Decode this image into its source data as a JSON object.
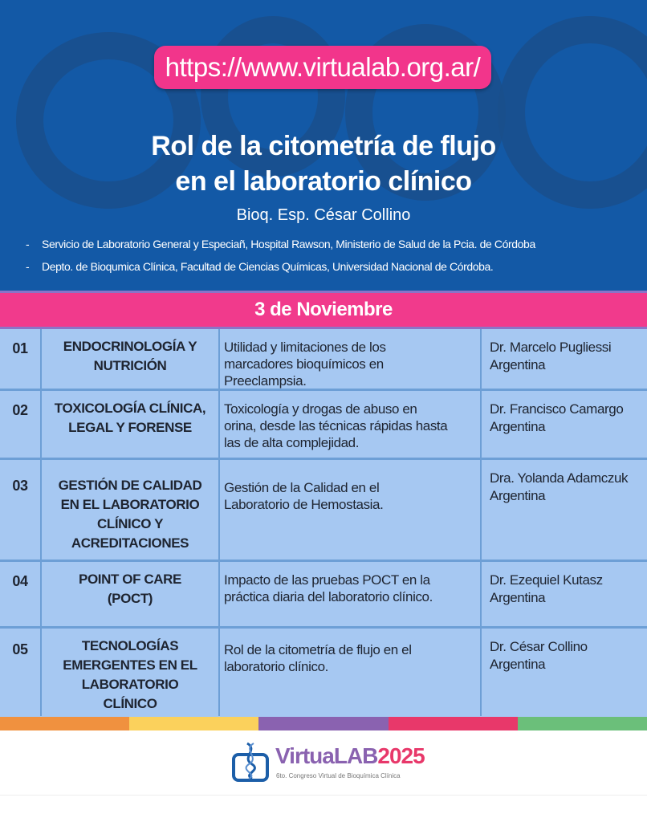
{
  "header": {
    "url": "https://www.virtualab.org.ar/",
    "title_line1": "Rol de la citometría de flujo",
    "title_line2": "en el laboratorio clínico",
    "speaker": "Bioq. Esp. César Collino",
    "affiliations": [
      "Servicio de Laboratorio General y Especiañ, Hospital Rawson, Ministerio de Salud de la Pcia. de Córdoba",
      "Depto. de Bioqumica Clínica, Facultad de Ciencias Químicas, Universidad Nacional de Córdoba."
    ],
    "bullet": "-"
  },
  "date": "3 de Noviembre",
  "rows": [
    {
      "num": "01",
      "area": [
        "ENDOCRINOLOGÍA Y",
        "NUTRICIÓN"
      ],
      "topic": [
        "Utilidad y limitaciones de los",
        "marcadores bioquímicos en",
        "Preeclampsia."
      ],
      "speaker": "Dr. Marcelo Pugliessi",
      "country": "Argentina"
    },
    {
      "num": "02",
      "area": [
        "TOXICOLOGÍA CLÍNICA,",
        "LEGAL Y FORENSE"
      ],
      "topic": [
        "Toxicología y drogas de abuso en",
        "orina, desde las técnicas rápidas hasta",
        "las de alta complejidad."
      ],
      "speaker": "Dr. Francisco Camargo",
      "country": "Argentina"
    },
    {
      "num": "03",
      "area": [
        "GESTIÓN DE CALIDAD",
        "EN EL LABORATORIO",
        "CLÍNICO Y",
        "ACREDITACIONES"
      ],
      "topic": [
        "Gestión de la Calidad en el",
        "Laboratorio de Hemostasia."
      ],
      "speaker": "Dra. Yolanda Adamczuk",
      "country": "Argentina"
    },
    {
      "num": "04",
      "area": [
        "POINT OF CARE",
        "(POCT)"
      ],
      "topic": [
        "Impacto de las pruebas POCT en la",
        "práctica diaria del laboratorio clínico."
      ],
      "speaker": "Dr. Ezequiel Kutasz",
      "country": "Argentina"
    },
    {
      "num": "05",
      "area": [
        "TECNOLOGÍAS",
        "EMERGENTES EN EL",
        "LABORATORIO",
        "CLÍNICO"
      ],
      "topic": [
        "Rol de la citometría de flujo en el",
        "laboratorio clínico."
      ],
      "speaker": "Dr. César Collino",
      "country": "Argentina"
    }
  ],
  "strip_colors": [
    "#f0913f",
    "#fbd15c",
    "#8a62b0",
    "#e8386a",
    "#6bbf7a"
  ],
  "logo": {
    "text_a": "VirtuaLAB",
    "text_b": "2025",
    "subtitle": "6to. Congreso Virtual de Bioquímica Clínica",
    "icon": "dna-screen-icon"
  },
  "colors": {
    "header_blue": "#1359a6",
    "pink": "#f2358b",
    "table_blue": "#a6c8f2"
  }
}
